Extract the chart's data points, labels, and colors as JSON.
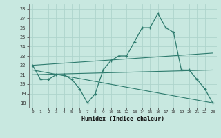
{
  "main_x": [
    0,
    1,
    2,
    3,
    4,
    5,
    6,
    7,
    8,
    9,
    10,
    11,
    12,
    13,
    14,
    15,
    16,
    17,
    18,
    19,
    20,
    21,
    22,
    23
  ],
  "main_y": [
    22,
    20.5,
    20.5,
    21,
    21,
    20.5,
    19.5,
    18,
    19,
    21.5,
    22.5,
    23,
    23,
    24.5,
    26,
    26,
    27.5,
    26,
    25.5,
    21.5,
    21.5,
    20.5,
    19.5,
    18
  ],
  "line1_x": [
    0,
    23
  ],
  "line1_y": [
    22,
    23.3
  ],
  "line2_x": [
    0,
    23
  ],
  "line2_y": [
    21,
    21.5
  ],
  "line3_x": [
    0,
    23
  ],
  "line3_y": [
    21.5,
    18
  ],
  "bg_color": "#c8e8e0",
  "grid_color": "#aed4cc",
  "line_color": "#2e7b6e",
  "title": "",
  "xlabel": "Humidex (Indice chaleur)",
  "xlim": [
    -0.5,
    23.5
  ],
  "ylim": [
    17.5,
    28.5
  ],
  "yticks": [
    18,
    19,
    20,
    21,
    22,
    23,
    24,
    25,
    26,
    27,
    28
  ],
  "xticks": [
    0,
    1,
    2,
    3,
    4,
    5,
    6,
    7,
    8,
    9,
    10,
    11,
    12,
    13,
    14,
    15,
    16,
    17,
    18,
    19,
    20,
    21,
    22,
    23
  ]
}
